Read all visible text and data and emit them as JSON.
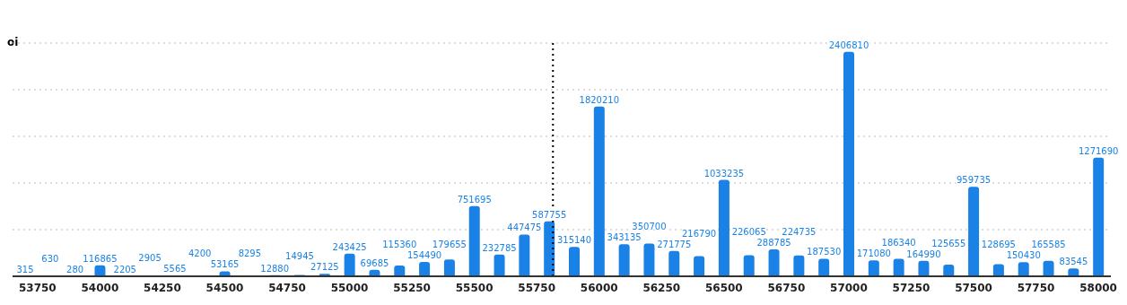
{
  "chart_data": {
    "type": "bar",
    "ylabel": "oi",
    "x": [
      53700,
      53800,
      53900,
      54000,
      54100,
      54200,
      54300,
      54400,
      54500,
      54600,
      54700,
      54800,
      54900,
      55000,
      55100,
      55200,
      55300,
      55400,
      55500,
      55600,
      55700,
      55800,
      55900,
      56000,
      56100,
      56200,
      56300,
      56400,
      56500,
      56600,
      56700,
      56800,
      56900,
      57000,
      57100,
      57200,
      57300,
      57400,
      57500,
      57600,
      57700,
      57800,
      57900,
      58000
    ],
    "values": [
      315,
      630,
      280,
      116865,
      2205,
      2905,
      5565,
      4200,
      53165,
      8295,
      12880,
      14945,
      27125,
      243425,
      69685,
      115360,
      154490,
      179655,
      751695,
      232785,
      447475,
      587755,
      315140,
      1820210,
      343135,
      350700,
      271775,
      216790,
      1033235,
      226065,
      288785,
      224735,
      187530,
      2406810,
      171080,
      186340,
      164990,
      125655,
      959735,
      128695,
      150430,
      165585,
      83545,
      1271690
    ],
    "color": "#1a82e6",
    "data_labels": true,
    "xlim": [
      53650,
      58050
    ],
    "xticks": [
      53750,
      54000,
      54250,
      54500,
      54750,
      55000,
      55250,
      55500,
      55750,
      56000,
      56250,
      56500,
      56750,
      57000,
      57250,
      57500,
      57750,
      58000
    ],
    "ylim": [
      0,
      2500000
    ],
    "tick_labels": "x",
    "grid": "y",
    "ref_lines": [
      {
        "axis": "x",
        "value": 55815,
        "color": "#000000",
        "line_style": "dotted"
      }
    ]
  }
}
